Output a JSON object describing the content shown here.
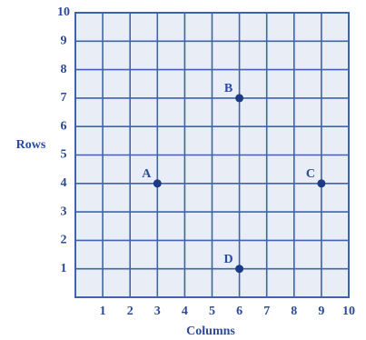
{
  "chart_data": {
    "type": "scatter",
    "x_label": "Columns",
    "y_label": "Rows",
    "xlim": [
      0,
      10
    ],
    "ylim": [
      0,
      10
    ],
    "xticks": [
      1,
      2,
      3,
      4,
      5,
      6,
      7,
      8,
      9,
      10
    ],
    "yticks": [
      1,
      2,
      3,
      4,
      5,
      6,
      7,
      8,
      9,
      10
    ],
    "grid": true,
    "series": [
      {
        "color": "#1f3a85",
        "labels": [
          "A",
          "B",
          "C",
          "D"
        ],
        "x": [
          3,
          6,
          9,
          6
        ],
        "values": [
          4,
          7,
          4,
          1
        ]
      }
    ]
  }
}
